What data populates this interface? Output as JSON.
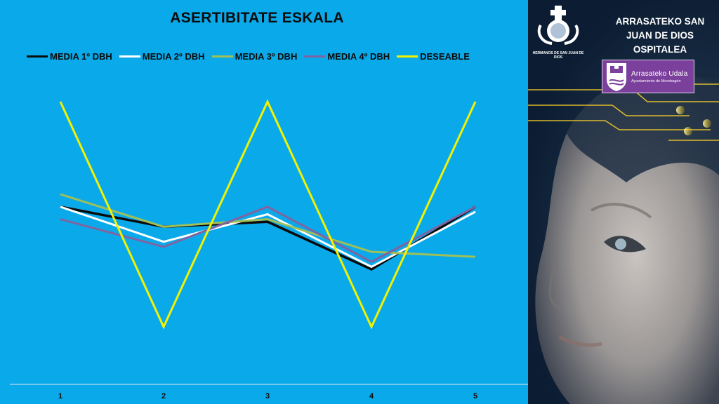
{
  "chart_data": {
    "type": "line",
    "title": "ASERTIBITATE ESKALA",
    "categories": [
      "1",
      "2",
      "3",
      "4",
      "5"
    ],
    "ylim": [
      0,
      10
    ],
    "grid": false,
    "legend_position": "top",
    "series": [
      {
        "name": "MEDIA 1º DBH",
        "color": "#0b0b0b",
        "values": [
          4.8,
          4.0,
          4.2,
          2.3,
          4.8
        ]
      },
      {
        "name": "MEDIA 2º DBH",
        "color": "#ffffff",
        "values": [
          4.8,
          3.4,
          4.5,
          2.4,
          4.6
        ]
      },
      {
        "name": "MEDIA 3º DBH",
        "color": "#9fbf59",
        "values": [
          5.3,
          4.0,
          4.3,
          3.0,
          2.8
        ]
      },
      {
        "name": "MEDIA 4º DBH",
        "color": "#8064a2",
        "values": [
          4.3,
          3.2,
          4.8,
          2.6,
          4.8
        ]
      },
      {
        "name": "DESEABLE",
        "color": "#f2f200",
        "values": [
          9.0,
          0.0,
          9.0,
          0.0,
          9.0
        ]
      }
    ]
  },
  "side": {
    "hospital_name_lines": [
      "ARRASATEKO SAN",
      "JUAN DE DIOS",
      "OSPITALEA"
    ],
    "logo_caption": "HERMANOS DE SAN JUAN DE DIOS",
    "udala_title": "Arrasateko Udala",
    "udala_subtitle": "Ayuntamiento de Mondragón"
  }
}
